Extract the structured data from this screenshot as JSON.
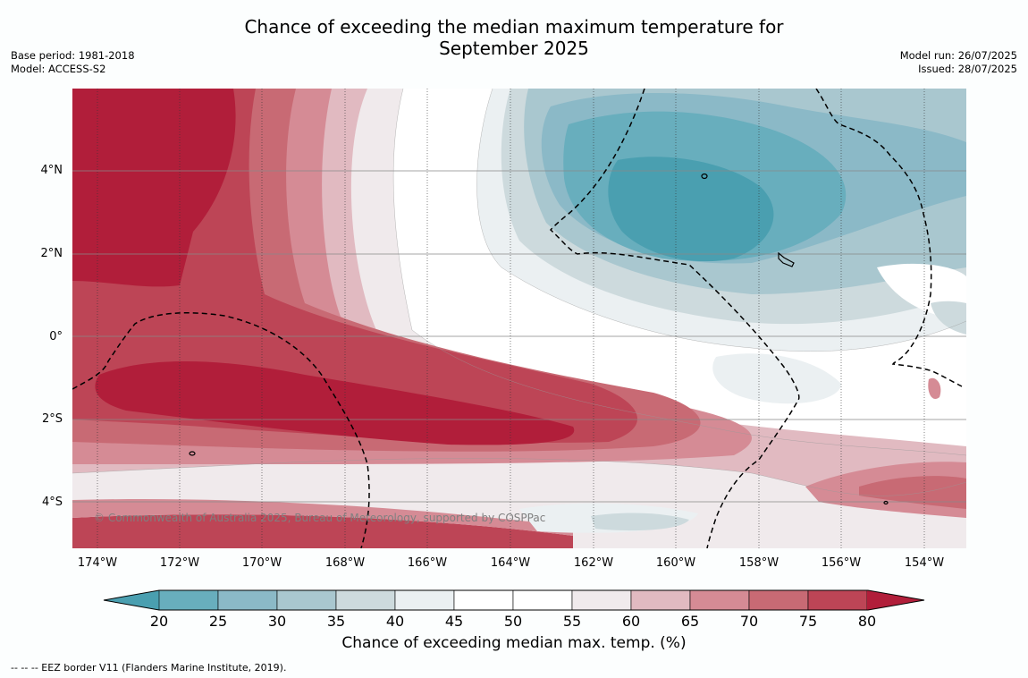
{
  "title_line1": "Chance of exceeding the median maximum temperature for",
  "title_line2": "September 2025",
  "meta_left": {
    "base_period": "Base period: 1981-2018",
    "model": "Model: ACCESS-S2"
  },
  "meta_right": {
    "model_run": "Model run: 26/07/2025",
    "issued": "Issued: 28/07/2025"
  },
  "copyright": "© Commonwealth of Australia 2025, Bureau of Meteorology, supported by COSPPac",
  "lat_labels": [
    "4°N",
    "2°N",
    "0°",
    "2°S",
    "4°S"
  ],
  "lon_labels": [
    "174°W",
    "172°W",
    "170°W",
    "168°W",
    "166°W",
    "164°W",
    "162°W",
    "160°W",
    "158°W",
    "156°W",
    "154°W"
  ],
  "colorbar": {
    "label": "Chance of exceeding median max. temp. (%)",
    "ticks": [
      "20",
      "25",
      "30",
      "35",
      "40",
      "45",
      "50",
      "55",
      "60",
      "65",
      "70",
      "75",
      "80"
    ],
    "colors": [
      "#4a9fb0",
      "#68aebd",
      "#8bb9c7",
      "#a9c7cf",
      "#cddadd",
      "#ebf0f2",
      "#ffffff",
      "#ffffff",
      "#f0eaec",
      "#e1bac1",
      "#d58b95",
      "#c86a74",
      "#bd4556",
      "#b11e3a"
    ]
  },
  "footnote": "--  --  -- EEZ border V11 (Flanders Marine Institute, 2019)."
}
